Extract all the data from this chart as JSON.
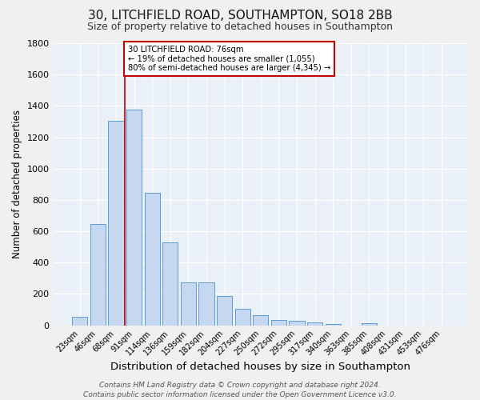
{
  "title1": "30, LITCHFIELD ROAD, SOUTHAMPTON, SO18 2BB",
  "title2": "Size of property relative to detached houses in Southampton",
  "xlabel": "Distribution of detached houses by size in Southampton",
  "ylabel": "Number of detached properties",
  "categories": [
    "23sqm",
    "46sqm",
    "68sqm",
    "91sqm",
    "114sqm",
    "136sqm",
    "159sqm",
    "182sqm",
    "204sqm",
    "227sqm",
    "250sqm",
    "272sqm",
    "295sqm",
    "317sqm",
    "340sqm",
    "363sqm",
    "385sqm",
    "408sqm",
    "431sqm",
    "453sqm",
    "476sqm"
  ],
  "values": [
    55,
    645,
    1305,
    1375,
    845,
    530,
    275,
    275,
    185,
    105,
    65,
    35,
    30,
    20,
    8,
    0,
    12,
    0,
    0,
    0,
    0
  ],
  "bar_color": "#c5d8f0",
  "bar_edge_color": "#5b9bd5",
  "vline_x": 2.5,
  "vline_color": "#c00000",
  "annotation_text": "30 LITCHFIELD ROAD: 76sqm\n← 19% of detached houses are smaller (1,055)\n80% of semi-detached houses are larger (4,345) →",
  "annotation_box_color": "#ffffff",
  "annotation_box_edge": "#c00000",
  "ylim": [
    0,
    1800
  ],
  "yticks": [
    0,
    200,
    400,
    600,
    800,
    1000,
    1200,
    1400,
    1600,
    1800
  ],
  "bg_color": "#eaf0f8",
  "grid_color": "#ffffff",
  "fig_color": "#f0f0f0",
  "footer": "Contains HM Land Registry data © Crown copyright and database right 2024.\nContains public sector information licensed under the Open Government Licence v3.0.",
  "title1_fontsize": 11,
  "title2_fontsize": 9,
  "xlabel_fontsize": 9.5,
  "ylabel_fontsize": 8.5,
  "footer_fontsize": 6.5
}
